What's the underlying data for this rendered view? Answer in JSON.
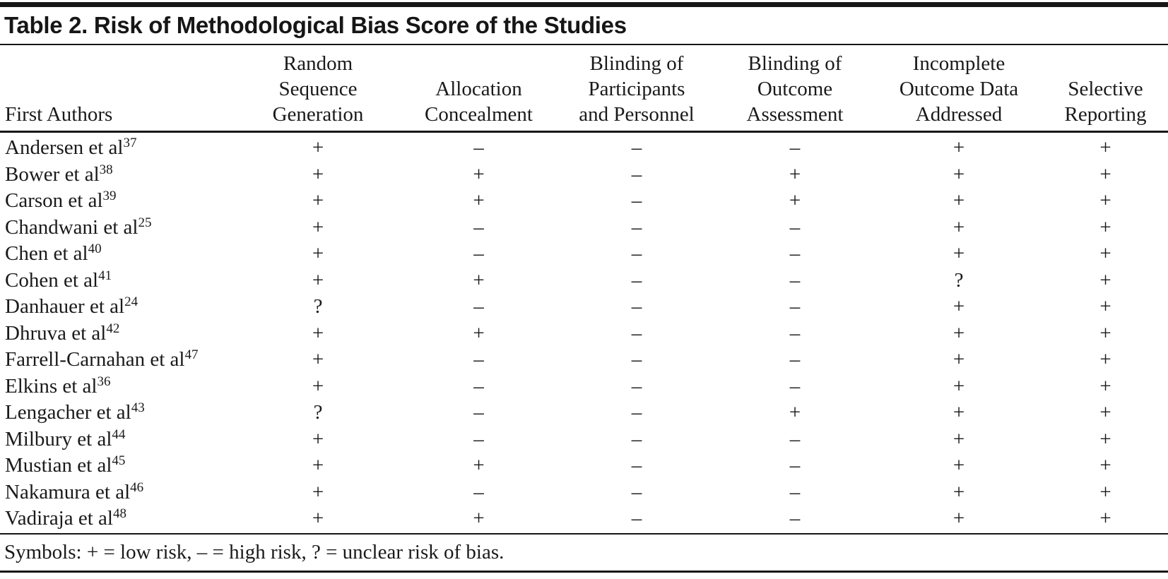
{
  "title": "Table 2. Risk of Methodological Bias Score of the Studies",
  "columns": [
    {
      "label": "First Authors"
    },
    {
      "label": "Random\nSequence\nGeneration"
    },
    {
      "label": "Allocation\nConcealment"
    },
    {
      "label": "Blinding of\nParticipants\nand Personnel"
    },
    {
      "label": "Blinding of\nOutcome\nAssessment"
    },
    {
      "label": "Incomplete\nOutcome Data\nAddressed"
    },
    {
      "label": "Selective\nReporting"
    }
  ],
  "rows": [
    {
      "author": "Andersen et al",
      "ref": "37",
      "values": [
        "+",
        "–",
        "–",
        "–",
        "+",
        "+"
      ]
    },
    {
      "author": "Bower et al",
      "ref": "38",
      "values": [
        "+",
        "+",
        "–",
        "+",
        "+",
        "+"
      ]
    },
    {
      "author": "Carson et al",
      "ref": "39",
      "values": [
        "+",
        "+",
        "–",
        "+",
        "+",
        "+"
      ]
    },
    {
      "author": "Chandwani et al",
      "ref": "25",
      "values": [
        "+",
        "–",
        "–",
        "–",
        "+",
        "+"
      ]
    },
    {
      "author": "Chen et al",
      "ref": "40",
      "values": [
        "+",
        "–",
        "–",
        "–",
        "+",
        "+"
      ]
    },
    {
      "author": "Cohen et al",
      "ref": "41",
      "values": [
        "+",
        "+",
        "–",
        "–",
        "?",
        "+"
      ]
    },
    {
      "author": "Danhauer et al",
      "ref": "24",
      "values": [
        "?",
        "–",
        "–",
        "–",
        "+",
        "+"
      ]
    },
    {
      "author": "Dhruva et al",
      "ref": "42",
      "values": [
        "+",
        "+",
        "–",
        "–",
        "+",
        "+"
      ]
    },
    {
      "author": "Farrell-Carnahan et al",
      "ref": "47",
      "values": [
        "+",
        "–",
        "–",
        "–",
        "+",
        "+"
      ]
    },
    {
      "author": "Elkins et al",
      "ref": "36",
      "values": [
        "+",
        "–",
        "–",
        "–",
        "+",
        "+"
      ]
    },
    {
      "author": "Lengacher et al",
      "ref": "43",
      "values": [
        "?",
        "–",
        "–",
        "+",
        "+",
        "+"
      ]
    },
    {
      "author": "Milbury et al",
      "ref": "44",
      "values": [
        "+",
        "–",
        "–",
        "–",
        "+",
        "+"
      ]
    },
    {
      "author": "Mustian et al",
      "ref": "45",
      "values": [
        "+",
        "+",
        "–",
        "–",
        "+",
        "+"
      ]
    },
    {
      "author": "Nakamura et al",
      "ref": "46",
      "values": [
        "+",
        "–",
        "–",
        "–",
        "+",
        "+"
      ]
    },
    {
      "author": "Vadiraja et al",
      "ref": "48",
      "values": [
        "+",
        "+",
        "–",
        "–",
        "+",
        "+"
      ]
    }
  ],
  "footnote": "Symbols: + = low risk, – = high risk, ? = unclear risk of bias.",
  "colors": {
    "text": "#1a1a1a",
    "rule": "#161616",
    "background": "#ffffff"
  }
}
